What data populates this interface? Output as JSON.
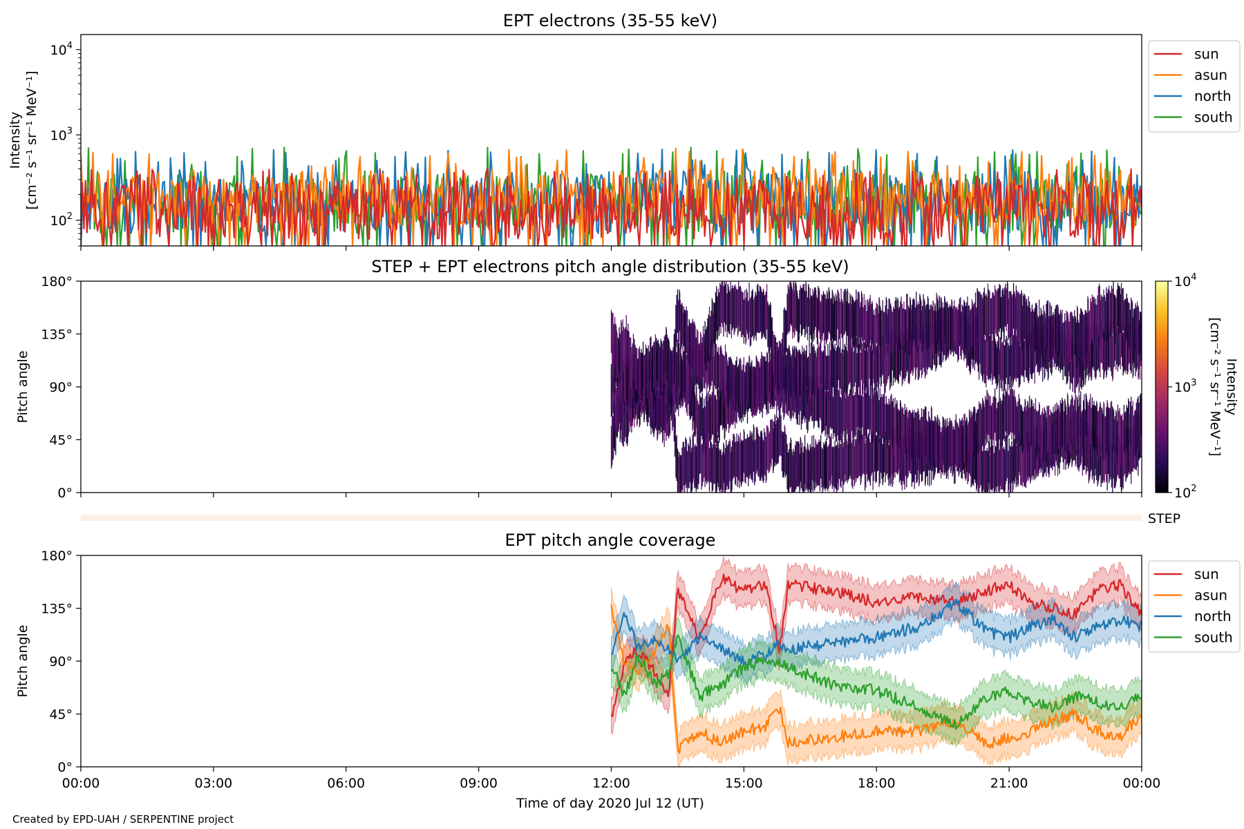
{
  "figure": {
    "footer": "Created by EPD-UAH / SERPENTINE project"
  },
  "colors": {
    "sun": "#d62728",
    "asun": "#ff7f0e",
    "north": "#1f77b4",
    "south": "#2ca02c",
    "step_bar": "#fdeee6"
  },
  "chart_data": [
    {
      "type": "line",
      "title": "EPT electrons (35-55 keV)",
      "ylabel": [
        "Intensity",
        "[cm⁻² s⁻¹ sr⁻¹ MeV⁻¹]"
      ],
      "yscale": "log",
      "ylim": [
        50,
        15000
      ],
      "yticks": [
        {
          "value": 100,
          "base": "10",
          "exp": "2"
        },
        {
          "value": 1000,
          "base": "10",
          "exp": "3"
        },
        {
          "value": 10000,
          "base": "10",
          "exp": "4"
        }
      ],
      "x_range_hours": [
        0,
        24
      ],
      "legend": {
        "placement": "outside-right-top",
        "entries": [
          "sun",
          "asun",
          "north",
          "south"
        ]
      },
      "series": [
        {
          "name": "sun",
          "typical_range": [
            60,
            300
          ],
          "peak": 400
        },
        {
          "name": "asun",
          "typical_range": [
            80,
            400
          ],
          "peak": 700
        },
        {
          "name": "north",
          "typical_range": [
            70,
            380
          ],
          "peak": 680
        },
        {
          "name": "south",
          "typical_range": [
            70,
            380
          ],
          "peak": 720
        }
      ]
    },
    {
      "type": "heatmap",
      "title": "STEP + EPT electrons pitch angle distribution (35-55 keV)",
      "ylabel": "Pitch angle",
      "ylim": [
        0,
        180
      ],
      "yticks": [
        "0°",
        "45°",
        "90°",
        "135°",
        "180°"
      ],
      "x_range_hours": [
        0,
        24
      ],
      "data_start_hour": 12.0,
      "colorbar": {
        "scale": "log",
        "range": [
          100,
          10000
        ],
        "label": "Intensity",
        "units": "[cm⁻² s⁻¹ sr⁻¹ MeV⁻¹]",
        "ticks": [
          {
            "value": 100,
            "base": "10",
            "exp": "2"
          },
          {
            "value": 1000,
            "base": "10",
            "exp": "3"
          },
          {
            "value": 10000,
            "base": "10",
            "exp": "4"
          }
        ],
        "colormap": "inferno"
      }
    },
    {
      "type": "bar",
      "label": "STEP",
      "note": "STEP coverage strip"
    },
    {
      "type": "line",
      "title": "EPT pitch angle coverage",
      "ylabel": "Pitch angle",
      "xlabel": "Time of day 2020 Jul 12 (UT)",
      "ylim": [
        0,
        180
      ],
      "yticks": [
        "0°",
        "45°",
        "90°",
        "135°",
        "180°"
      ],
      "xticks": [
        "00:00",
        "03:00",
        "06:00",
        "09:00",
        "12:00",
        "15:00",
        "18:00",
        "21:00",
        "00:00"
      ],
      "x_range_hours": [
        0,
        24
      ],
      "legend": {
        "placement": "outside-right-top",
        "entries": [
          "sun",
          "asun",
          "north",
          "south"
        ]
      },
      "band_halfwidth_deg": 15,
      "series": [
        {
          "name": "sun",
          "x": [
            12.0,
            12.3,
            12.6,
            13.0,
            13.3,
            13.5,
            14.0,
            14.5,
            15.0,
            15.5,
            15.8,
            16.0,
            17.0,
            18.0,
            19.0,
            19.8,
            20.5,
            21.0,
            21.5,
            22.0,
            22.5,
            23.0,
            23.5,
            24.0
          ],
          "y": [
            42,
            90,
            100,
            80,
            60,
            150,
            110,
            160,
            150,
            155,
            100,
            155,
            150,
            140,
            145,
            140,
            150,
            155,
            140,
            135,
            130,
            150,
            155,
            130
          ]
        },
        {
          "name": "asun",
          "x": [
            12.0,
            12.3,
            12.6,
            13.0,
            13.3,
            13.5,
            14.0,
            14.5,
            15.0,
            15.5,
            15.8,
            16.0,
            17.0,
            18.0,
            19.0,
            19.8,
            20.5,
            21.0,
            21.5,
            22.0,
            22.5,
            23.0,
            23.5,
            24.0
          ],
          "y": [
            135,
            90,
            80,
            100,
            120,
            15,
            30,
            20,
            30,
            35,
            50,
            20,
            25,
            30,
            30,
            40,
            20,
            25,
            30,
            40,
            45,
            30,
            25,
            45
          ]
        },
        {
          "name": "north",
          "x": [
            12.0,
            12.3,
            12.6,
            13.0,
            13.3,
            13.5,
            14.0,
            14.5,
            15.0,
            15.5,
            15.8,
            16.0,
            17.0,
            18.0,
            19.0,
            19.8,
            20.5,
            21.0,
            21.5,
            22.0,
            22.5,
            23.0,
            23.5,
            24.0
          ],
          "y": [
            95,
            130,
            100,
            110,
            100,
            90,
            110,
            100,
            90,
            95,
            105,
            100,
            105,
            110,
            120,
            140,
            115,
            110,
            120,
            125,
            110,
            120,
            125,
            120
          ]
        },
        {
          "name": "south",
          "x": [
            12.0,
            12.3,
            12.6,
            13.0,
            13.3,
            13.5,
            14.0,
            14.5,
            15.0,
            15.5,
            15.8,
            16.0,
            17.0,
            18.0,
            19.0,
            19.8,
            20.5,
            21.0,
            21.5,
            22.0,
            22.5,
            23.0,
            23.5,
            24.0
          ],
          "y": [
            85,
            60,
            95,
            70,
            80,
            110,
            60,
            70,
            85,
            90,
            90,
            85,
            70,
            65,
            50,
            35,
            60,
            65,
            55,
            50,
            60,
            55,
            50,
            60
          ]
        }
      ]
    }
  ]
}
